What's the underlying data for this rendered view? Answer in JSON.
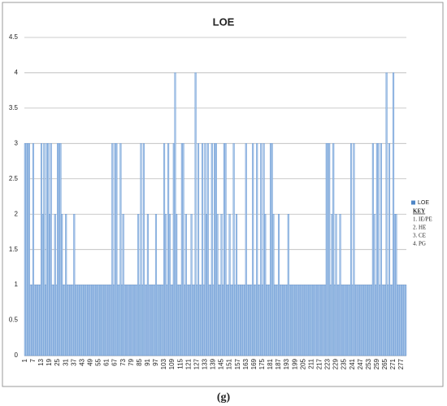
{
  "chart_data": {
    "type": "bar",
    "title": "LOE",
    "caption": "(g)",
    "categories": [
      "1",
      null,
      null,
      null,
      null,
      null,
      "7",
      null,
      null,
      null,
      null,
      null,
      "13",
      null,
      null,
      null,
      null,
      null,
      "19",
      null,
      null,
      null,
      null,
      null,
      "25",
      null,
      null,
      null,
      null,
      null,
      "31",
      null,
      null,
      null,
      null,
      null,
      "37",
      null,
      null,
      null,
      null,
      null,
      "43",
      null,
      null,
      null,
      null,
      null,
      "49",
      null,
      null,
      null,
      null,
      null,
      "55",
      null,
      null,
      null,
      null,
      null,
      "61",
      null,
      null,
      null,
      null,
      null,
      "67",
      null,
      null,
      null,
      null,
      null,
      "73",
      null,
      null,
      null,
      null,
      null,
      "79",
      null,
      null,
      null,
      null,
      null,
      "85",
      null,
      null,
      null,
      null,
      null,
      "91",
      null,
      null,
      null,
      null,
      null,
      "97",
      null,
      null,
      null,
      null,
      null,
      "103",
      null,
      null,
      null,
      null,
      null,
      "109",
      null,
      null,
      null,
      null,
      null,
      "115",
      null,
      null,
      null,
      null,
      null,
      "121",
      null,
      null,
      null,
      null,
      null,
      "127",
      null,
      null,
      null,
      null,
      null,
      "133",
      null,
      null,
      null,
      null,
      null,
      "139",
      null,
      null,
      null,
      null,
      null,
      "145",
      null,
      null,
      null,
      null,
      null,
      "151",
      null,
      null,
      null,
      null,
      null,
      "157",
      null,
      null,
      null,
      null,
      null,
      "163",
      null,
      null,
      null,
      null,
      null,
      "169",
      null,
      null,
      null,
      null,
      null,
      "175",
      null,
      null,
      null,
      null,
      null,
      "181",
      null,
      null,
      null,
      null,
      null,
      "187",
      null,
      null,
      null,
      null,
      null,
      "193",
      null,
      null,
      null,
      null,
      null,
      "199",
      null,
      null,
      null,
      null,
      null,
      "205",
      null,
      null,
      null,
      null,
      null,
      "211",
      null,
      null,
      null,
      null,
      null,
      "217",
      null,
      null,
      null,
      null,
      null,
      "223",
      null,
      null,
      null,
      null,
      null,
      "229",
      null,
      null,
      null,
      null,
      null,
      "235",
      null,
      null,
      null,
      null,
      null,
      "241",
      null,
      null,
      null,
      null,
      null,
      "247",
      null,
      null,
      null,
      null,
      null,
      "253",
      null,
      null,
      null,
      null,
      null,
      "259",
      null,
      null,
      null,
      null,
      null,
      "265",
      null,
      null,
      null,
      null,
      null,
      "271",
      null,
      null,
      null,
      null,
      null,
      "277",
      null,
      null,
      null
    ],
    "series": [
      {
        "name": "LOE",
        "color": "#a9c6e8",
        "values": [
          3,
          3,
          3,
          3,
          1,
          1,
          3,
          1,
          1,
          1,
          1,
          1,
          3,
          2,
          3,
          1,
          3,
          3,
          2,
          3,
          1,
          1,
          2,
          1,
          3,
          3,
          3,
          2,
          1,
          1,
          2,
          1,
          1,
          1,
          1,
          1,
          2,
          1,
          1,
          1,
          1,
          1,
          1,
          1,
          1,
          1,
          1,
          1,
          1,
          1,
          1,
          1,
          1,
          1,
          1,
          1,
          1,
          1,
          1,
          1,
          1,
          1,
          1,
          1,
          3,
          1,
          3,
          3,
          1,
          1,
          3,
          1,
          2,
          1,
          1,
          1,
          1,
          1,
          1,
          1,
          1,
          1,
          1,
          2,
          1,
          3,
          1,
          3,
          1,
          1,
          2,
          1,
          1,
          1,
          1,
          1,
          2,
          1,
          1,
          1,
          1,
          1,
          3,
          2,
          1,
          3,
          2,
          1,
          1,
          3,
          4,
          2,
          1,
          1,
          1,
          3,
          3,
          1,
          2,
          1,
          1,
          1,
          2,
          1,
          1,
          4,
          1,
          3,
          1,
          1,
          3,
          1,
          3,
          2,
          3,
          1,
          1,
          3,
          1,
          3,
          3,
          2,
          1,
          1,
          2,
          1,
          3,
          3,
          1,
          1,
          2,
          1,
          1,
          3,
          1,
          2,
          1,
          1,
          1,
          1,
          1,
          1,
          3,
          1,
          1,
          1,
          1,
          3,
          1,
          1,
          3,
          1,
          1,
          3,
          1,
          3,
          2,
          1,
          1,
          1,
          3,
          3,
          2,
          1,
          1,
          1,
          2,
          1,
          1,
          1,
          1,
          1,
          1,
          2,
          1,
          1,
          1,
          1,
          1,
          1,
          1,
          1,
          1,
          1,
          1,
          1,
          1,
          1,
          1,
          1,
          1,
          1,
          1,
          1,
          1,
          1,
          1,
          1,
          1,
          1,
          1,
          3,
          3,
          3,
          1,
          2,
          3,
          1,
          2,
          1,
          1,
          2,
          1,
          1,
          1,
          1,
          1,
          1,
          1,
          3,
          1,
          3,
          1,
          1,
          1,
          1,
          1,
          1,
          1,
          1,
          1,
          1,
          1,
          1,
          1,
          3,
          2,
          1,
          3,
          3,
          1,
          3,
          1,
          1,
          1,
          4,
          1,
          3,
          1,
          1,
          4,
          2,
          2,
          1,
          1,
          1,
          1,
          1,
          1,
          1
        ]
      }
    ],
    "ylim": [
      0,
      4.5
    ],
    "yticks": [
      0,
      0.5,
      1,
      1.5,
      2,
      2.5,
      3,
      3.5,
      4,
      4.5
    ],
    "grid": true,
    "legend": "right",
    "key": {
      "title": "KEY",
      "items": [
        "1. IE/PE",
        "2. HE",
        "3. CE",
        "4. PG"
      ]
    }
  }
}
